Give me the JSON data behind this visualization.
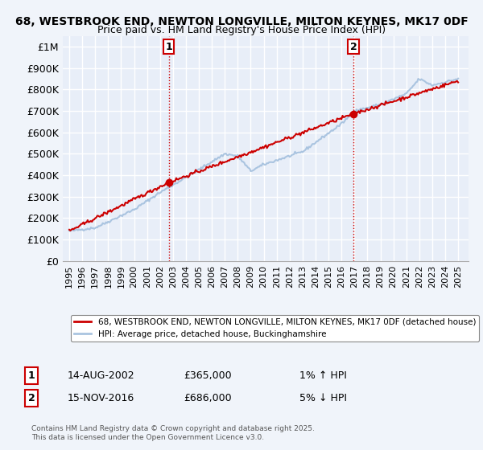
{
  "title_line1": "68, WESTBROOK END, NEWTON LONGVILLE, MILTON KEYNES, MK17 0DF",
  "title_line2": "Price paid vs. HM Land Registry's House Price Index (HPI)",
  "bg_color": "#f0f4fa",
  "plot_bg_color": "#e8eef8",
  "grid_color": "#ffffff",
  "sale1_date": "2002-08-14",
  "sale1_price": 365000,
  "sale1_label": "1",
  "sale1_hpi_note": "1% ↑ HPI",
  "sale1_date_str": "14-AUG-2002",
  "sale2_date": "2016-11-15",
  "sale2_price": 686000,
  "sale2_label": "2",
  "sale2_hpi_note": "5% ↓ HPI",
  "sale2_date_str": "15-NOV-2016",
  "ylabel_ticks": [
    0,
    100000,
    200000,
    300000,
    400000,
    500000,
    600000,
    700000,
    800000,
    900000,
    1000000
  ],
  "ylabel_labels": [
    "£0",
    "£100K",
    "£200K",
    "£300K",
    "£400K",
    "£500K",
    "£600K",
    "£700K",
    "£800K",
    "£900K",
    "£1M"
  ],
  "xlim_start": 1994.5,
  "xlim_end": 2025.8,
  "ylim_min": 0,
  "ylim_max": 1050000,
  "hpi_line_color": "#aac4e0",
  "price_line_color": "#cc0000",
  "vline_color": "#cc0000",
  "sale_marker_color": "#cc0000",
  "legend_label1": "68, WESTBROOK END, NEWTON LONGVILLE, MILTON KEYNES, MK17 0DF (detached house)",
  "legend_label2": "HPI: Average price, detached house, Buckinghamshire",
  "footer_text": "Contains HM Land Registry data © Crown copyright and database right 2025.\nThis data is licensed under the Open Government Licence v3.0.",
  "xtick_years": [
    1995,
    1996,
    1997,
    1998,
    1999,
    2000,
    2001,
    2002,
    2003,
    2004,
    2005,
    2006,
    2007,
    2008,
    2009,
    2010,
    2011,
    2012,
    2013,
    2014,
    2015,
    2016,
    2017,
    2018,
    2019,
    2020,
    2021,
    2022,
    2023,
    2024,
    2025
  ]
}
